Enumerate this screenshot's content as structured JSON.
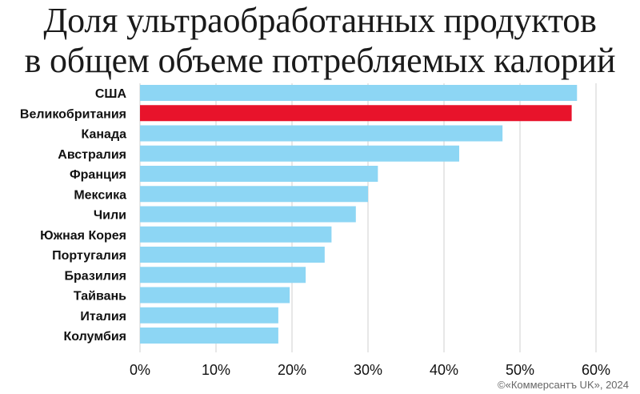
{
  "title_lines": [
    "Доля ультраобработанных продуктов",
    "в общем объеме потребляемых калорий"
  ],
  "credit": "©«Коммерсантъ UK», 2024",
  "colors": {
    "bar": "#8dd6f4",
    "highlight": "#e8132b",
    "grid": "#cfcfcf"
  },
  "chart_data": {
    "type": "bar",
    "orientation": "horizontal",
    "title": "Доля ультраобработанных продуктов в общем объеме потребляемых калорий",
    "categories": [
      "США",
      "Великобритания",
      "Канада",
      "Австралия",
      "Франция",
      "Мексика",
      "Чили",
      "Южная Корея",
      "Португалия",
      "Бразилия",
      "Тайвань",
      "Италия",
      "Колумбия"
    ],
    "values": [
      57.5,
      56.8,
      47.7,
      42.0,
      31.3,
      30.0,
      28.4,
      25.2,
      24.3,
      21.8,
      19.7,
      18.2,
      18.2
    ],
    "highlight": "Великобритания",
    "xlim": [
      0,
      60
    ],
    "xticks": [
      "0%",
      "10%",
      "20%",
      "30%",
      "40%",
      "50%",
      "60%"
    ],
    "grid": true
  }
}
